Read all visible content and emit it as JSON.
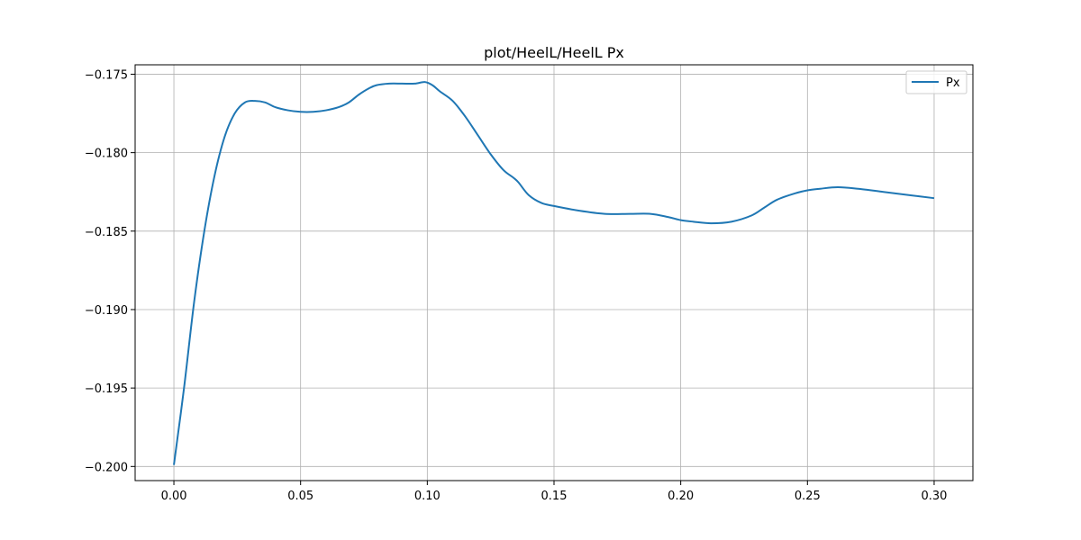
{
  "chart_data": {
    "type": "line",
    "title": "plot/HeelL/HeelL Px",
    "xlabel": "",
    "ylabel": "",
    "xlim": [
      -0.0153,
      0.3153
    ],
    "ylim": [
      -0.2009,
      -0.1744
    ],
    "xticks": [
      0.0,
      0.05,
      0.1,
      0.15,
      0.2,
      0.25,
      0.3
    ],
    "xtick_labels": [
      "0.00",
      "0.05",
      "0.10",
      "0.15",
      "0.20",
      "0.25",
      "0.30"
    ],
    "yticks": [
      -0.2,
      -0.195,
      -0.19,
      -0.185,
      -0.18,
      -0.175
    ],
    "ytick_labels": [
      "−0.200",
      "−0.195",
      "−0.190",
      "−0.185",
      "−0.180",
      "−0.175"
    ],
    "grid": true,
    "legend_position": "top-right",
    "series": [
      {
        "name": "Px",
        "color": "#1f77b4",
        "points": [
          [
            0.0,
            -0.1999
          ],
          [
            0.004,
            -0.195
          ],
          [
            0.008,
            -0.1895
          ],
          [
            0.012,
            -0.185
          ],
          [
            0.016,
            -0.1815
          ],
          [
            0.02,
            -0.179
          ],
          [
            0.024,
            -0.1775
          ],
          [
            0.028,
            -0.1768
          ],
          [
            0.032,
            -0.1767
          ],
          [
            0.036,
            -0.1768
          ],
          [
            0.04,
            -0.1771
          ],
          [
            0.045,
            -0.1773
          ],
          [
            0.05,
            -0.1774
          ],
          [
            0.055,
            -0.1774
          ],
          [
            0.06,
            -0.1773
          ],
          [
            0.065,
            -0.1771
          ],
          [
            0.069,
            -0.1768
          ],
          [
            0.073,
            -0.1763
          ],
          [
            0.077,
            -0.1759
          ],
          [
            0.08,
            -0.1757
          ],
          [
            0.085,
            -0.1756
          ],
          [
            0.09,
            -0.1756
          ],
          [
            0.095,
            -0.1756
          ],
          [
            0.099,
            -0.1755
          ],
          [
            0.102,
            -0.1757
          ],
          [
            0.105,
            -0.1761
          ],
          [
            0.11,
            -0.1767
          ],
          [
            0.115,
            -0.1777
          ],
          [
            0.12,
            -0.1789
          ],
          [
            0.125,
            -0.1801
          ],
          [
            0.13,
            -0.1811
          ],
          [
            0.134,
            -0.1816
          ],
          [
            0.136,
            -0.1819
          ],
          [
            0.14,
            -0.1827
          ],
          [
            0.145,
            -0.1832
          ],
          [
            0.15,
            -0.1834
          ],
          [
            0.16,
            -0.1837
          ],
          [
            0.17,
            -0.1839
          ],
          [
            0.18,
            -0.1839
          ],
          [
            0.188,
            -0.1839
          ],
          [
            0.195,
            -0.1841
          ],
          [
            0.2,
            -0.1843
          ],
          [
            0.205,
            -0.1844
          ],
          [
            0.212,
            -0.1845
          ],
          [
            0.22,
            -0.1844
          ],
          [
            0.228,
            -0.184
          ],
          [
            0.233,
            -0.1835
          ],
          [
            0.238,
            -0.183
          ],
          [
            0.245,
            -0.1826
          ],
          [
            0.25,
            -0.1824
          ],
          [
            0.255,
            -0.1823
          ],
          [
            0.262,
            -0.1822
          ],
          [
            0.27,
            -0.1823
          ],
          [
            0.28,
            -0.1825
          ],
          [
            0.29,
            -0.1827
          ],
          [
            0.3,
            -0.1829
          ]
        ]
      }
    ]
  }
}
